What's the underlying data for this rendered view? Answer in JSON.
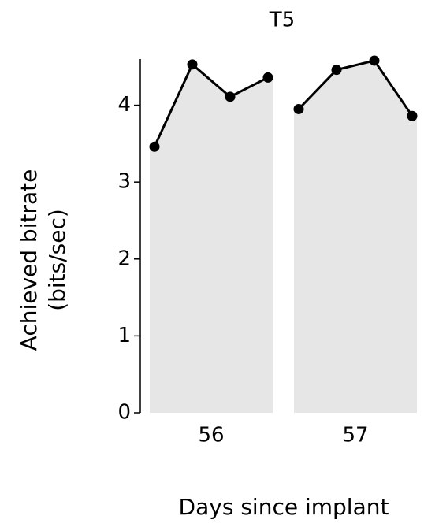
{
  "chart_data": {
    "type": "line",
    "title": "T5",
    "ylabel": [
      "Achieved bitrate",
      "(bits/sec)"
    ],
    "xlabel": "Days since implant",
    "groups": [
      {
        "label": "56",
        "values": [
          3.46,
          4.53,
          4.11,
          4.36
        ]
      },
      {
        "label": "57",
        "values": [
          3.95,
          4.46,
          4.58,
          3.86
        ]
      }
    ],
    "color": "#000000",
    "panel_color": "#e6e6e6",
    "ylim": [
      0,
      4.6
    ],
    "yticks": [
      0,
      1,
      2,
      3,
      4
    ]
  }
}
